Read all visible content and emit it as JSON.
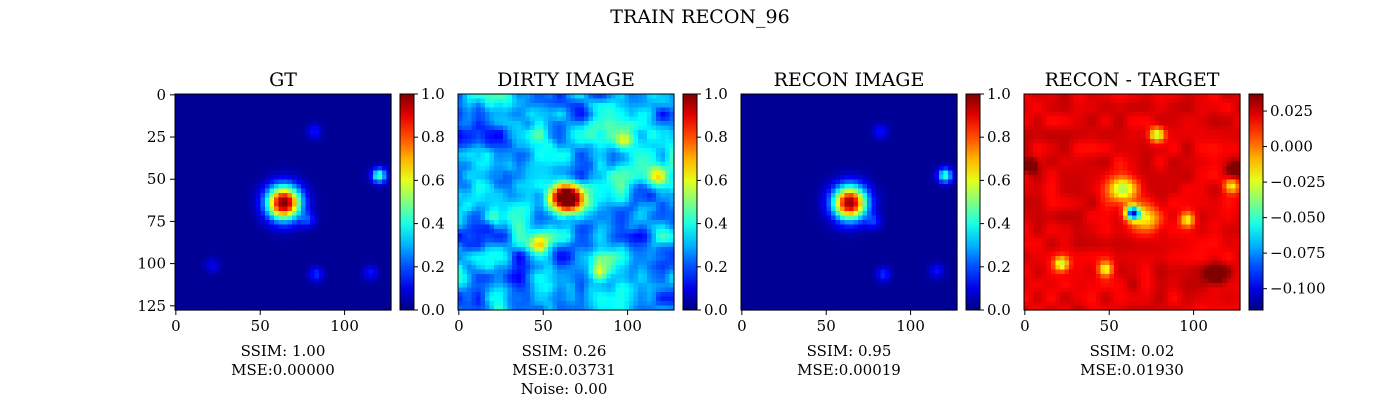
{
  "figure": {
    "suptitle": "TRAIN RECON_96"
  },
  "chart_data": [
    {
      "type": "heatmap",
      "title": "GT",
      "x_ticks": [
        0,
        50,
        100
      ],
      "y_ticks": [
        0,
        25,
        50,
        75,
        100,
        125
      ],
      "xlim": [
        0,
        127
      ],
      "ylim": [
        127,
        0
      ],
      "colormap": "jet",
      "colorbar": {
        "range": [
          0.0,
          1.0
        ],
        "ticks": [
          "0.0",
          "0.2",
          "0.4",
          "0.6",
          "0.8",
          "1.0"
        ]
      },
      "metrics": [
        "SSIM: 1.00",
        "MSE:0.00000"
      ],
      "features": [
        {
          "kind": "gaussian",
          "x": 64,
          "y": 64,
          "sigma": 7,
          "peak": 1.0
        },
        {
          "kind": "gaussian",
          "x": 120,
          "y": 48,
          "sigma": 3,
          "peak": 0.45
        },
        {
          "kind": "gaussian",
          "x": 78,
          "y": 74,
          "sigma": 3,
          "peak": 0.15
        },
        {
          "kind": "gaussian",
          "x": 82,
          "y": 22,
          "sigma": 3,
          "peak": 0.12
        },
        {
          "kind": "gaussian",
          "x": 83,
          "y": 106,
          "sigma": 3,
          "peak": 0.15
        },
        {
          "kind": "gaussian",
          "x": 22,
          "y": 101,
          "sigma": 3,
          "peak": 0.1
        },
        {
          "kind": "gaussian",
          "x": 115,
          "y": 105,
          "sigma": 3,
          "peak": 0.12
        }
      ]
    },
    {
      "type": "heatmap",
      "title": "DIRTY IMAGE",
      "x_ticks": [
        0,
        50,
        100
      ],
      "xlim": [
        0,
        127
      ],
      "ylim": [
        127,
        0
      ],
      "colormap": "jet",
      "colorbar": {
        "range": [
          0.0,
          1.0
        ],
        "ticks": [
          "0.0",
          "0.2",
          "0.4",
          "0.6",
          "0.8",
          "1.0"
        ]
      },
      "metrics": [
        "SSIM: 0.26",
        "MSE:0.03731",
        "Noise: 0.00"
      ],
      "features": [
        {
          "kind": "gaussian",
          "x": 64,
          "y": 62,
          "sigma": 6,
          "peak": 0.85
        },
        {
          "kind": "gaussian",
          "x": 118,
          "y": 48,
          "sigma": 4,
          "peak": 0.4
        },
        {
          "kind": "gaussian",
          "x": 83,
          "y": 104,
          "sigma": 4,
          "peak": 0.35
        },
        {
          "kind": "gaussian",
          "x": 48,
          "y": 88,
          "sigma": 4,
          "peak": 0.3
        },
        {
          "kind": "gaussian",
          "x": 98,
          "y": 28,
          "sigma": 4,
          "peak": 0.25
        },
        {
          "kind": "gaussian",
          "x": 22,
          "y": 72,
          "sigma": 4,
          "peak": 0.25
        }
      ]
    },
    {
      "type": "heatmap",
      "title": "RECON IMAGE",
      "x_ticks": [
        0,
        50,
        100
      ],
      "xlim": [
        0,
        127
      ],
      "ylim": [
        127,
        0
      ],
      "colormap": "jet",
      "colorbar": {
        "range": [
          0.0,
          1.0
        ],
        "ticks": [
          "0.0",
          "0.2",
          "0.4",
          "0.6",
          "0.8",
          "1.0"
        ]
      },
      "metrics": [
        "SSIM: 0.95",
        "MSE:0.00019"
      ],
      "features": [
        {
          "kind": "gaussian",
          "x": 64,
          "y": 64,
          "sigma": 7,
          "peak": 0.97
        },
        {
          "kind": "gaussian",
          "x": 120,
          "y": 48,
          "sigma": 3,
          "peak": 0.42
        },
        {
          "kind": "gaussian",
          "x": 78,
          "y": 75,
          "sigma": 3,
          "peak": 0.14
        },
        {
          "kind": "gaussian",
          "x": 82,
          "y": 22,
          "sigma": 3,
          "peak": 0.12
        },
        {
          "kind": "gaussian",
          "x": 84,
          "y": 106,
          "sigma": 3,
          "peak": 0.15
        },
        {
          "kind": "gaussian",
          "x": 115,
          "y": 104,
          "sigma": 3,
          "peak": 0.12
        }
      ]
    },
    {
      "type": "heatmap",
      "title": "RECON - TARGET",
      "x_ticks": [
        0,
        50,
        100
      ],
      "xlim": [
        0,
        127
      ],
      "ylim": [
        127,
        0
      ],
      "colormap": "jet",
      "colorbar": {
        "range": [
          -0.115,
          0.037
        ],
        "ticks": [
          "0.025",
          "0.000",
          "−0.025",
          "−0.050",
          "−0.075",
          "−0.100"
        ],
        "tick_values": [
          0.025,
          0.0,
          -0.025,
          -0.05,
          -0.075,
          -0.1
        ]
      },
      "metrics": [
        "SSIM: 0.02",
        "MSE:0.01930"
      ],
      "features": [
        {
          "kind": "gaussian",
          "x": 64,
          "y": 70,
          "sigma": 3,
          "peak": -0.115
        },
        {
          "kind": "gaussian",
          "x": 58,
          "y": 56,
          "sigma": 6,
          "peak": -0.05
        },
        {
          "kind": "gaussian",
          "x": 72,
          "y": 74,
          "sigma": 6,
          "peak": -0.04
        },
        {
          "kind": "gaussian",
          "x": 78,
          "y": 24,
          "sigma": 3,
          "peak": -0.05
        },
        {
          "kind": "gaussian",
          "x": 22,
          "y": 100,
          "sigma": 3,
          "peak": -0.05
        },
        {
          "kind": "gaussian",
          "x": 48,
          "y": 103,
          "sigma": 3,
          "peak": -0.05
        },
        {
          "kind": "gaussian",
          "x": 96,
          "y": 74,
          "sigma": 3,
          "peak": -0.04
        },
        {
          "kind": "gaussian",
          "x": 122,
          "y": 54,
          "sigma": 3,
          "peak": -0.04
        },
        {
          "kind": "gaussian",
          "x": 113,
          "y": 106,
          "sigma": 4,
          "peak": 0.035
        },
        {
          "kind": "gaussian",
          "x": 4,
          "y": 42,
          "sigma": 3,
          "peak": 0.03
        },
        {
          "kind": "gaussian",
          "x": 124,
          "y": 44,
          "sigma": 3,
          "peak": 0.03
        }
      ]
    }
  ]
}
